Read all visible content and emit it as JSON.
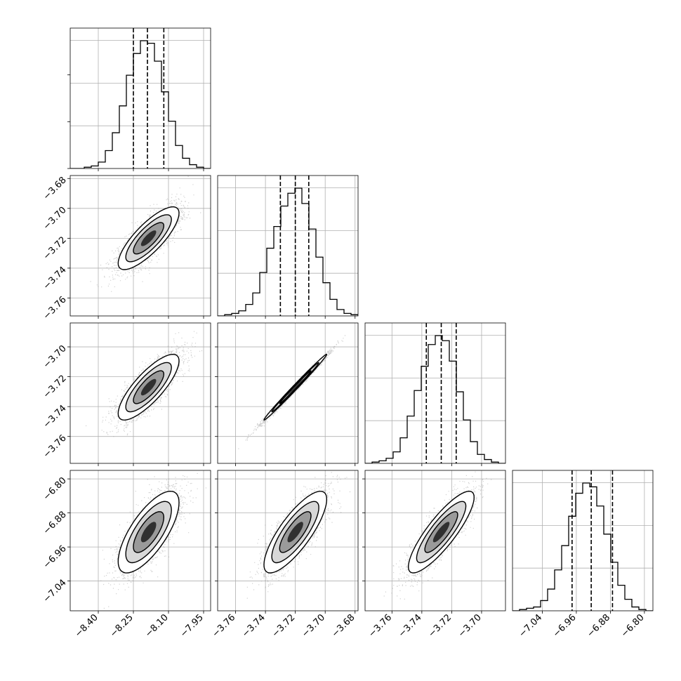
{
  "chart_data": {
    "type": "corner",
    "title": "",
    "grid": true,
    "line_color": "#000000",
    "scatter_color": "#9a9a9a",
    "quantile_line_style": "dashed",
    "params": [
      {
        "ticks": [
          -8.4,
          -8.25,
          -8.1,
          -7.95
        ],
        "tick_labels": [
          "−8.40",
          "−8.25",
          "−8.10",
          "−7.95"
        ],
        "range": [
          -8.52,
          -7.92
        ],
        "mean": -8.185,
        "sd": 0.065,
        "quantiles": [
          -8.25,
          -8.19,
          -8.12
        ],
        "hist_bins": [
          0,
          0,
          1,
          2,
          5,
          14,
          28,
          49,
          73,
          90,
          100,
          98,
          84,
          60,
          37,
          18,
          8,
          3,
          1,
          0
        ]
      },
      {
        "ticks": [
          -3.76,
          -3.74,
          -3.72,
          -3.7,
          -3.68
        ],
        "tick_labels": [
          "−3.76",
          "−3.74",
          "−3.72",
          "−3.70",
          "−3.68"
        ],
        "range": [
          -3.772,
          -3.678
        ],
        "mean": -3.72,
        "sd": 0.0105,
        "quantiles": [
          -3.73,
          -3.72,
          -3.711
        ],
        "hist_bins": [
          0,
          1,
          2,
          4,
          9,
          18,
          34,
          53,
          70,
          86,
          96,
          100,
          88,
          68,
          46,
          26,
          13,
          5,
          2,
          1
        ]
      },
      {
        "ticks": [
          -3.76,
          -3.74,
          -3.72,
          -3.7
        ],
        "tick_labels": [
          "−3.76",
          "−3.74",
          "−3.72",
          "−3.70"
        ],
        "range": [
          -3.778,
          -3.684
        ],
        "mean": -3.727,
        "sd": 0.011,
        "quantiles": [
          -3.737,
          -3.727,
          -3.717
        ],
        "hist_bins": [
          0,
          1,
          2,
          4,
          9,
          20,
          37,
          57,
          76,
          93,
          100,
          96,
          80,
          56,
          34,
          17,
          7,
          3,
          1,
          0
        ]
      },
      {
        "ticks": [
          -7.04,
          -6.96,
          -6.88,
          -6.8
        ],
        "tick_labels": [
          "−7.04",
          "−6.96",
          "−6.88",
          "−6.80"
        ],
        "range": [
          -7.11,
          -6.78
        ],
        "mean": -6.925,
        "sd": 0.048,
        "quantiles": [
          -6.97,
          -6.925,
          -6.875
        ],
        "hist_bins": [
          0,
          1,
          2,
          3,
          8,
          17,
          32,
          51,
          74,
          92,
          100,
          97,
          82,
          60,
          38,
          20,
          9,
          3,
          1,
          0
        ]
      }
    ],
    "pairs": [
      {
        "row": 1,
        "col": 0,
        "corr": 0.8
      },
      {
        "row": 2,
        "col": 0,
        "corr": 0.8
      },
      {
        "row": 2,
        "col": 1,
        "corr": 0.995
      },
      {
        "row": 3,
        "col": 0,
        "corr": 0.72
      },
      {
        "row": 3,
        "col": 1,
        "corr": 0.8
      },
      {
        "row": 3,
        "col": 2,
        "corr": 0.85
      }
    ]
  }
}
